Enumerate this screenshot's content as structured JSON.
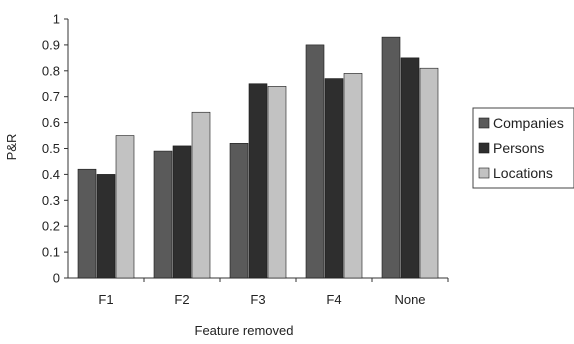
{
  "chart_data": {
    "type": "bar",
    "categories": [
      "F1",
      "F2",
      "F3",
      "F4",
      "None"
    ],
    "series": [
      {
        "name": "Companies",
        "values": [
          0.42,
          0.49,
          0.52,
          0.9,
          0.93
        ]
      },
      {
        "name": "Persons",
        "values": [
          0.4,
          0.51,
          0.75,
          0.77,
          0.85
        ]
      },
      {
        "name": "Locations",
        "values": [
          0.55,
          0.64,
          0.74,
          0.79,
          0.81
        ]
      }
    ],
    "title": "",
    "xlabel": "Feature removed",
    "ylabel": "P&R",
    "ylim": [
      0,
      1
    ],
    "yticks": [
      "0",
      "0.1",
      "0.2",
      "0.3",
      "0.4",
      "0.5",
      "0.6",
      "0.7",
      "0.8",
      "0.9",
      "1"
    ],
    "grid": false,
    "legend": "right",
    "colors": [
      "#5a5a5a",
      "#2e2e2e",
      "#c2c2c2"
    ]
  }
}
